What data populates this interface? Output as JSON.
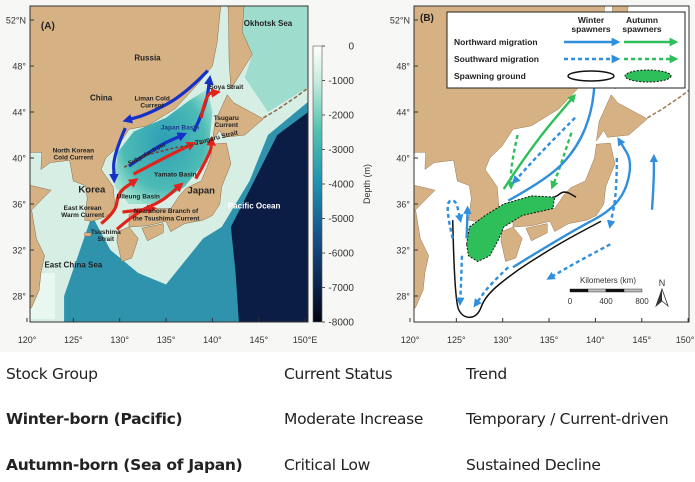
{
  "figure": {
    "panel_a": {
      "label": "(A)",
      "place_labels": [
        "Okhotsk Sea",
        "Russia",
        "China",
        "Liman Cold Current",
        "Soya Strait",
        "Tsugaru Current",
        "Japan Basin",
        "Tsugaru Strait",
        "North Korean Cold Current",
        "Subpolar front",
        "Yamato Basin",
        "Korea",
        "Japan",
        "Ulleung Basin",
        "East Korean Warm Current",
        "Nearshore Branch of the Tsushima Current",
        "Tsushima Strait",
        "Pacific Ocean",
        "East China Sea"
      ],
      "colorbar": {
        "title": "Depth (m)",
        "ticks": [
          "0",
          "-1000",
          "-2000",
          "-3000",
          "-4000",
          "-5000",
          "-6000",
          "-7000",
          "-8000"
        ]
      },
      "current_colors": {
        "warm": "#e0241b",
        "cold": "#1531c8"
      }
    },
    "panel_b": {
      "label": "(B)",
      "legend": {
        "col_headers": [
          "Winter spawners",
          "Autumn spawners"
        ],
        "rows": [
          "Northward migration",
          "Southward migration",
          "Spawning ground"
        ]
      },
      "scale_bar": {
        "title": "Kilometers (km)",
        "ticks": [
          "0",
          "400",
          "800"
        ]
      },
      "north_label": "N",
      "colors": {
        "winter": "#2f8fdc",
        "autumn": "#2fbf5a",
        "land": "#d6b184"
      }
    },
    "lat_ticks": [
      "52°N",
      "48°",
      "44°",
      "40°",
      "36°",
      "32°",
      "28°"
    ],
    "lon_ticks": [
      "120°",
      "125°",
      "130°",
      "135°",
      "140°",
      "145°",
      "150°E"
    ]
  },
  "table": {
    "headers": [
      "Stock Group",
      "Current Status",
      "Trend"
    ],
    "rows": [
      [
        "Winter-born (Pacific)",
        "Moderate Increase",
        "Temporary / Current-driven"
      ],
      [
        "Autumn-born (Sea of Japan)",
        "Critical Low",
        "Sustained Decline"
      ]
    ]
  }
}
